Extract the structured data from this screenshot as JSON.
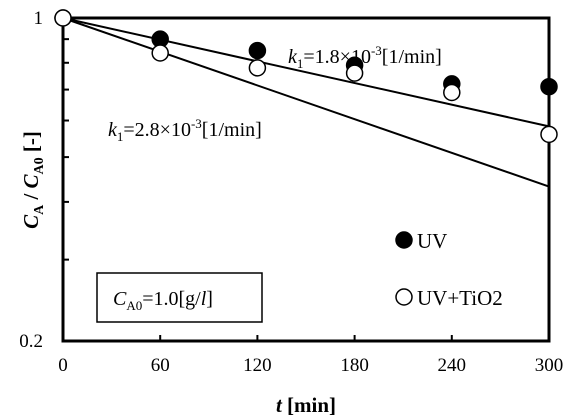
{
  "chart_data": {
    "type": "scatter",
    "y_scale": "log",
    "xlim": [
      0,
      300
    ],
    "ylim": [
      0.2,
      1
    ],
    "x_ticks": [
      "0",
      "60",
      "120",
      "180",
      "240",
      "300"
    ],
    "y_ticks": [
      "0.2",
      "1"
    ],
    "x_unit": "[min]",
    "x_symbol": "t",
    "y_symbol": {
      "num_main": "C",
      "num_sub": "A",
      "sep": " / ",
      "den_main": "C",
      "den_sub": "A0",
      "unit": " [-]"
    },
    "series": [
      {
        "name": "UV",
        "marker": "filled-circle",
        "x": [
          0,
          60,
          120,
          180,
          240,
          300
        ],
        "y": [
          1.0,
          0.9,
          0.85,
          0.79,
          0.72,
          0.71
        ],
        "fit_k": 0.0018,
        "fit_label": {
          "sym": "k",
          "sub": "1",
          "rest": "=1.8×10",
          "exp": "-3",
          "unit": "[1/min]"
        }
      },
      {
        "name": "UV+TiO2",
        "marker": "open-circle",
        "x": [
          0,
          60,
          120,
          180,
          240,
          300
        ],
        "y": [
          1.0,
          0.84,
          0.78,
          0.76,
          0.69,
          0.56
        ],
        "fit_k": 0.0028,
        "fit_label": {
          "sym": "k",
          "sub": "1",
          "rest": "=2.8×10",
          "exp": "-3",
          "unit": "[1/min]"
        }
      }
    ],
    "annotation_box": {
      "sym": "C",
      "sub": "A0",
      "rest": "=1.0[g/",
      "italic": "l",
      "close": "]"
    },
    "grid": false,
    "legend_position": "bottom-right"
  },
  "colors": {
    "axis": "#000000",
    "marker_fill": "#000000",
    "marker_open": "#ffffff",
    "line": "#000000"
  }
}
